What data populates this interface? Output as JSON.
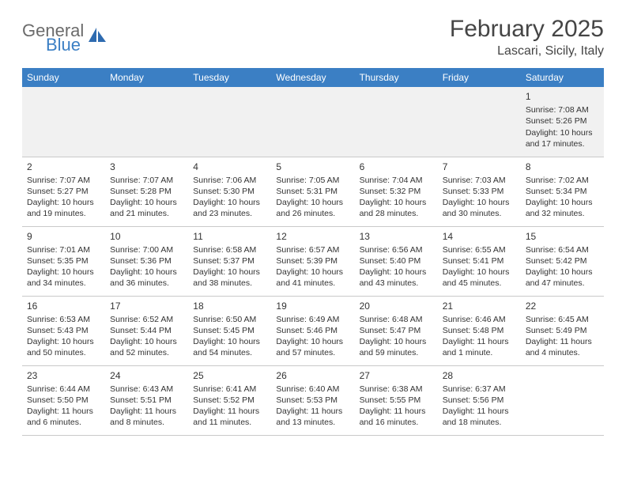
{
  "logo": {
    "textTop": "General",
    "textBottom": "Blue"
  },
  "title": "February 2025",
  "location": "Lascari, Sicily, Italy",
  "header_bg": "#3b7fc4",
  "header_fg": "#ffffff",
  "cell_border": "#c9c9c9",
  "firstrow_bg": "#f1f1f1",
  "days": [
    "Sunday",
    "Monday",
    "Tuesday",
    "Wednesday",
    "Thursday",
    "Friday",
    "Saturday"
  ],
  "weeks": [
    [
      null,
      null,
      null,
      null,
      null,
      null,
      {
        "n": "1",
        "sr": "Sunrise: 7:08 AM",
        "ss": "Sunset: 5:26 PM",
        "dl": "Daylight: 10 hours and 17 minutes."
      }
    ],
    [
      {
        "n": "2",
        "sr": "Sunrise: 7:07 AM",
        "ss": "Sunset: 5:27 PM",
        "dl": "Daylight: 10 hours and 19 minutes."
      },
      {
        "n": "3",
        "sr": "Sunrise: 7:07 AM",
        "ss": "Sunset: 5:28 PM",
        "dl": "Daylight: 10 hours and 21 minutes."
      },
      {
        "n": "4",
        "sr": "Sunrise: 7:06 AM",
        "ss": "Sunset: 5:30 PM",
        "dl": "Daylight: 10 hours and 23 minutes."
      },
      {
        "n": "5",
        "sr": "Sunrise: 7:05 AM",
        "ss": "Sunset: 5:31 PM",
        "dl": "Daylight: 10 hours and 26 minutes."
      },
      {
        "n": "6",
        "sr": "Sunrise: 7:04 AM",
        "ss": "Sunset: 5:32 PM",
        "dl": "Daylight: 10 hours and 28 minutes."
      },
      {
        "n": "7",
        "sr": "Sunrise: 7:03 AM",
        "ss": "Sunset: 5:33 PM",
        "dl": "Daylight: 10 hours and 30 minutes."
      },
      {
        "n": "8",
        "sr": "Sunrise: 7:02 AM",
        "ss": "Sunset: 5:34 PM",
        "dl": "Daylight: 10 hours and 32 minutes."
      }
    ],
    [
      {
        "n": "9",
        "sr": "Sunrise: 7:01 AM",
        "ss": "Sunset: 5:35 PM",
        "dl": "Daylight: 10 hours and 34 minutes."
      },
      {
        "n": "10",
        "sr": "Sunrise: 7:00 AM",
        "ss": "Sunset: 5:36 PM",
        "dl": "Daylight: 10 hours and 36 minutes."
      },
      {
        "n": "11",
        "sr": "Sunrise: 6:58 AM",
        "ss": "Sunset: 5:37 PM",
        "dl": "Daylight: 10 hours and 38 minutes."
      },
      {
        "n": "12",
        "sr": "Sunrise: 6:57 AM",
        "ss": "Sunset: 5:39 PM",
        "dl": "Daylight: 10 hours and 41 minutes."
      },
      {
        "n": "13",
        "sr": "Sunrise: 6:56 AM",
        "ss": "Sunset: 5:40 PM",
        "dl": "Daylight: 10 hours and 43 minutes."
      },
      {
        "n": "14",
        "sr": "Sunrise: 6:55 AM",
        "ss": "Sunset: 5:41 PM",
        "dl": "Daylight: 10 hours and 45 minutes."
      },
      {
        "n": "15",
        "sr": "Sunrise: 6:54 AM",
        "ss": "Sunset: 5:42 PM",
        "dl": "Daylight: 10 hours and 47 minutes."
      }
    ],
    [
      {
        "n": "16",
        "sr": "Sunrise: 6:53 AM",
        "ss": "Sunset: 5:43 PM",
        "dl": "Daylight: 10 hours and 50 minutes."
      },
      {
        "n": "17",
        "sr": "Sunrise: 6:52 AM",
        "ss": "Sunset: 5:44 PM",
        "dl": "Daylight: 10 hours and 52 minutes."
      },
      {
        "n": "18",
        "sr": "Sunrise: 6:50 AM",
        "ss": "Sunset: 5:45 PM",
        "dl": "Daylight: 10 hours and 54 minutes."
      },
      {
        "n": "19",
        "sr": "Sunrise: 6:49 AM",
        "ss": "Sunset: 5:46 PM",
        "dl": "Daylight: 10 hours and 57 minutes."
      },
      {
        "n": "20",
        "sr": "Sunrise: 6:48 AM",
        "ss": "Sunset: 5:47 PM",
        "dl": "Daylight: 10 hours and 59 minutes."
      },
      {
        "n": "21",
        "sr": "Sunrise: 6:46 AM",
        "ss": "Sunset: 5:48 PM",
        "dl": "Daylight: 11 hours and 1 minute."
      },
      {
        "n": "22",
        "sr": "Sunrise: 6:45 AM",
        "ss": "Sunset: 5:49 PM",
        "dl": "Daylight: 11 hours and 4 minutes."
      }
    ],
    [
      {
        "n": "23",
        "sr": "Sunrise: 6:44 AM",
        "ss": "Sunset: 5:50 PM",
        "dl": "Daylight: 11 hours and 6 minutes."
      },
      {
        "n": "24",
        "sr": "Sunrise: 6:43 AM",
        "ss": "Sunset: 5:51 PM",
        "dl": "Daylight: 11 hours and 8 minutes."
      },
      {
        "n": "25",
        "sr": "Sunrise: 6:41 AM",
        "ss": "Sunset: 5:52 PM",
        "dl": "Daylight: 11 hours and 11 minutes."
      },
      {
        "n": "26",
        "sr": "Sunrise: 6:40 AM",
        "ss": "Sunset: 5:53 PM",
        "dl": "Daylight: 11 hours and 13 minutes."
      },
      {
        "n": "27",
        "sr": "Sunrise: 6:38 AM",
        "ss": "Sunset: 5:55 PM",
        "dl": "Daylight: 11 hours and 16 minutes."
      },
      {
        "n": "28",
        "sr": "Sunrise: 6:37 AM",
        "ss": "Sunset: 5:56 PM",
        "dl": "Daylight: 11 hours and 18 minutes."
      },
      null
    ]
  ]
}
